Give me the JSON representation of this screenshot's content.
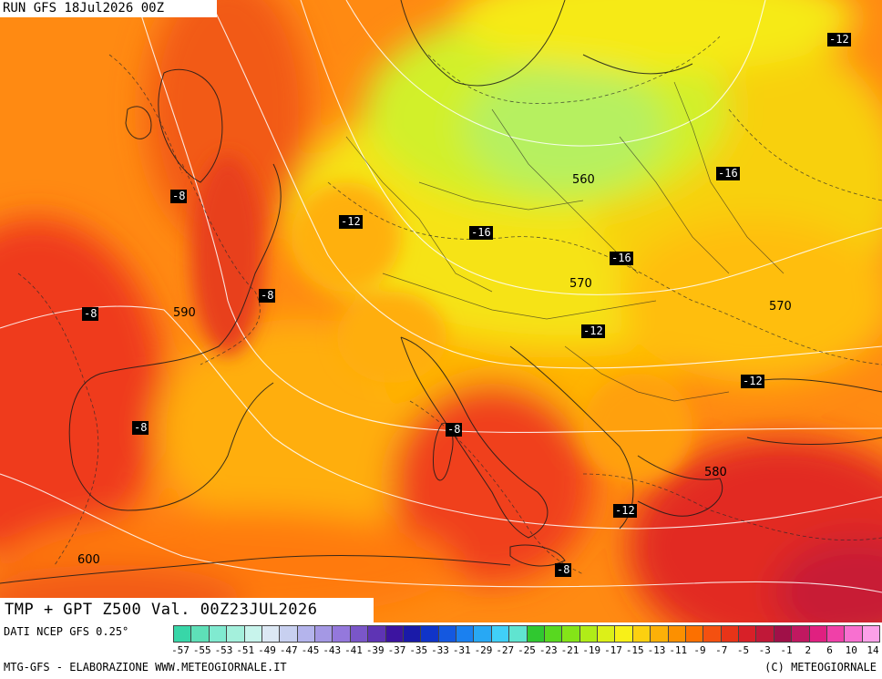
{
  "header": {
    "run_title": "RUN GFS 18Jul2026 00Z",
    "product_title": "TMP + GPT Z500 Val. 00Z23JUL2026"
  },
  "map": {
    "variable": "TMP + GPT Z500",
    "temperature_labels": [
      "-12",
      "-8",
      "-8",
      "-16",
      "-12",
      "-16",
      "-8",
      "-8",
      "-16",
      "-12",
      "-8",
      "-12",
      "-8",
      "-12",
      "-8"
    ],
    "height_labels": [
      "560",
      "590",
      "570",
      "570",
      "580",
      "600"
    ],
    "colors": {
      "warm_deep": "#d8202c",
      "warm": "#ff6a10",
      "orange": "#ff9a1c",
      "amber": "#ffb800",
      "yellow": "#f4ec18",
      "lime": "#c8f03a",
      "green": "#a8f060"
    }
  },
  "footer": {
    "data_source": "DATI NCEP GFS 0.25°",
    "credit_left": "MTG-GFS - ELABORAZIONE WWW.METEOGIORNALE.IT",
    "credit_right": "(C) METEOGIORNALE",
    "scale_ticks": [
      "-57",
      "-55",
      "-53",
      "-51",
      "-49",
      "-47",
      "-45",
      "-43",
      "-41",
      "-39",
      "-37",
      "-35",
      "-33",
      "-31",
      "-29",
      "-27",
      "-25",
      "-23",
      "-21",
      "-19",
      "-17",
      "-15",
      "-13",
      "-11",
      "-9",
      "-7",
      "-5",
      "-3",
      "-1",
      "2",
      "6",
      "10",
      "14"
    ],
    "scale_colors": [
      "#38d6a8",
      "#5ee0b8",
      "#80ead0",
      "#a4f0dc",
      "#c8f4ec",
      "#dce8f4",
      "#c8d0f0",
      "#b4b4ec",
      "#a498e4",
      "#9478dc",
      "#7a56c8",
      "#5e34b4",
      "#3c14a0",
      "#1a1aa8",
      "#1034c8",
      "#1458e0",
      "#1a80f0",
      "#28a8f4",
      "#40d0f8",
      "#60e4d0",
      "#30c830",
      "#58d820",
      "#84e418",
      "#b0ec18",
      "#dcf018",
      "#f8f018",
      "#fcd010",
      "#fcb008",
      "#fc9000",
      "#fc7000",
      "#f45010",
      "#e83418",
      "#d82028",
      "#c01838",
      "#a01048",
      "#c01860",
      "#e02080",
      "#f040a8",
      "#f870d0",
      "#fca0e8"
    ]
  }
}
